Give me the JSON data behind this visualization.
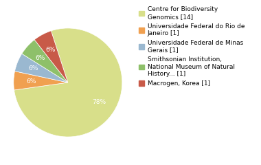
{
  "labels": [
    "Centre for Biodiversity\nGenomics [14]",
    "Universidade Federal do Rio de\nJaneiro [1]",
    "Universidade Federal de Minas\nGerais [1]",
    "Smithsonian Institution,\nNational Museum of Natural\nHistory... [1]",
    "Macrogen, Korea [1]"
  ],
  "values": [
    14,
    1,
    1,
    1,
    1
  ],
  "colors": [
    "#d8df8a",
    "#f0a050",
    "#9ab8d0",
    "#8ec06a",
    "#c85a48"
  ],
  "background_color": "#ffffff",
  "startangle": 108,
  "legend_fontsize": 6.5
}
